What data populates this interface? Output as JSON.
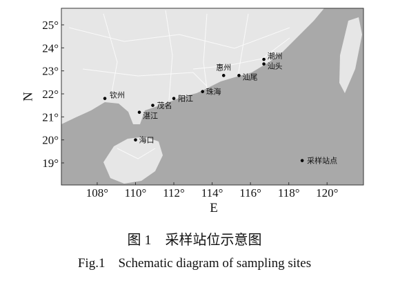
{
  "map": {
    "xlabel": "E",
    "ylabel": "N",
    "xlim": [
      106.13,
      121.9
    ],
    "ylim": [
      18.04,
      25.72
    ],
    "xticks": [
      {
        "value": 108,
        "label": "108°"
      },
      {
        "value": 110,
        "label": "110°"
      },
      {
        "value": 112,
        "label": "112°"
      },
      {
        "value": 114,
        "label": "114°"
      },
      {
        "value": 116,
        "label": "116°"
      },
      {
        "value": 118,
        "label": "118°"
      },
      {
        "value": 120,
        "label": "120°"
      }
    ],
    "yticks": [
      {
        "value": 19,
        "label": "19°"
      },
      {
        "value": 20,
        "label": "20°"
      },
      {
        "value": 21,
        "label": "21°"
      },
      {
        "value": 22,
        "label": "22°"
      },
      {
        "value": 23,
        "label": "23°"
      },
      {
        "value": 24,
        "label": "24°"
      },
      {
        "value": 25,
        "label": "25°"
      }
    ],
    "sites": [
      {
        "name": "钦州",
        "lon": 108.4,
        "lat": 21.8
      },
      {
        "name": "茂名",
        "lon": 110.9,
        "lat": 21.5
      },
      {
        "name": "阳江",
        "lon": 112.0,
        "lat": 21.8
      },
      {
        "name": "湛江",
        "lon": 110.2,
        "lat": 21.2
      },
      {
        "name": "海口",
        "lon": 110.0,
        "lat": 20.0
      },
      {
        "name": "珠海",
        "lon": 113.5,
        "lat": 22.1
      },
      {
        "name": "惠州",
        "lon": 114.6,
        "lat": 22.8
      },
      {
        "name": "汕尾",
        "lon": 115.4,
        "lat": 22.8
      },
      {
        "name": "潮州",
        "lon": 116.7,
        "lat": 23.5
      },
      {
        "name": "汕头",
        "lon": 116.7,
        "lat": 23.3
      },
      {
        "name": "采样站点",
        "lon": 118.7,
        "lat": 19.1
      }
    ],
    "caption_cn": "图 1　采样站位示意图",
    "caption_en": "Fig.1　Schematic diagram of sampling sites"
  }
}
